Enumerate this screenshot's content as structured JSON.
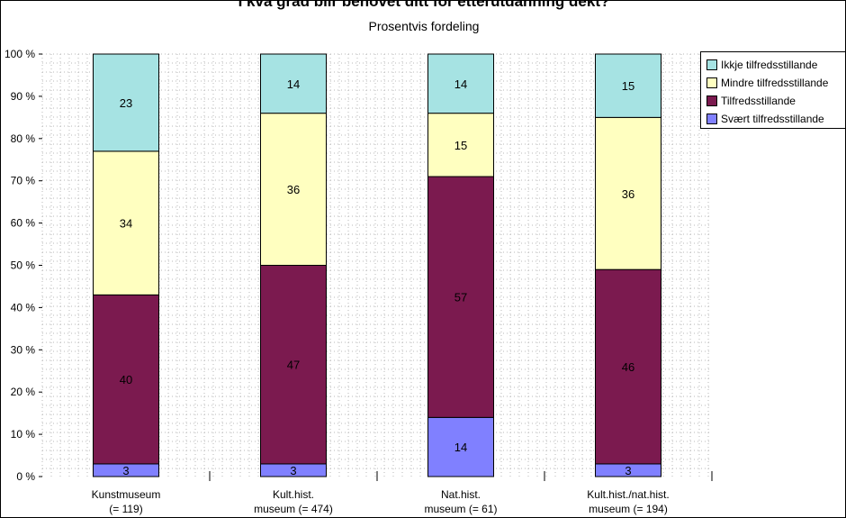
{
  "chart_data": {
    "type": "bar",
    "stacked": true,
    "title": "I kva grad blir behovet ditt for etterutdanning dekt?",
    "subtitle": "Prosentvis fordeling",
    "categories": [
      [
        "Kunstmuseum",
        "(= 119)"
      ],
      [
        "Kult.hist.",
        "museum (= 474)"
      ],
      [
        "Nat.hist.",
        "museum (= 61)"
      ],
      [
        "Kult.hist./nat.hist.",
        "museum (= 194)"
      ]
    ],
    "series": [
      {
        "name": "Svært tilfredsstillande",
        "color": "#8080ff",
        "values": [
          3,
          3,
          14,
          3
        ]
      },
      {
        "name": "Tilfredsstillande",
        "color": "#7b1a4f",
        "values": [
          40,
          47,
          57,
          46
        ]
      },
      {
        "name": "Mindre tilfredsstillande",
        "color": "#ffffc0",
        "values": [
          34,
          36,
          15,
          36
        ]
      },
      {
        "name": "Ikkje tilfredsstillande",
        "color": "#a6e3e3",
        "values": [
          23,
          14,
          14,
          15
        ]
      }
    ],
    "legend_order": [
      "Ikkje tilfredsstillande",
      "Mindre tilfredsstillande",
      "Tilfredsstillande",
      "Svært tilfredsstillande"
    ],
    "yticks": [
      "0 %",
      "10 %",
      "20 %",
      "30 %",
      "40 %",
      "50 %",
      "60 %",
      "70 %",
      "80 %",
      "90 %",
      "100 %"
    ],
    "ylim": [
      0,
      100
    ],
    "grid": true,
    "legend_position": "top-right"
  }
}
